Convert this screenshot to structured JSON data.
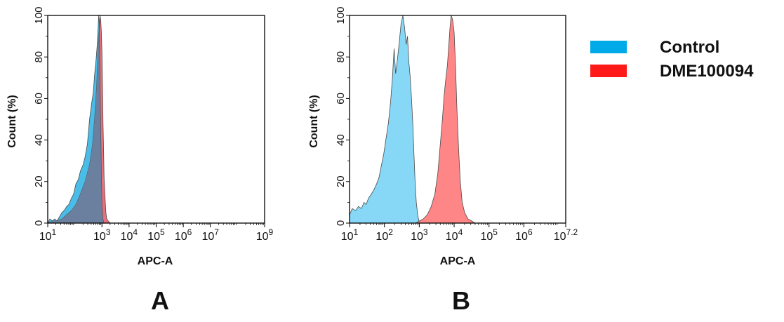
{
  "colors": {
    "control": "#00a9e8",
    "dme": "#ff1a1a",
    "control_fill_A": "#3fb8e6",
    "dme_fill_A": "#e8606a",
    "overlap_fill_A": "#6b7f9e",
    "control_fill_B": "#7fd6f5",
    "dme_fill_B": "#ff7f7f",
    "edge": "#4a4a4a"
  },
  "legend": {
    "items": [
      {
        "label": "Control",
        "color": "#00a9e8"
      },
      {
        "label": "DME100094",
        "color": "#ff1a1a"
      }
    ]
  },
  "chart_data": [
    {
      "panel": "A",
      "type": "area",
      "xlabel": "APC-A",
      "ylabel": "Count  (%)",
      "xscale": "log",
      "xlim": [
        10,
        1000000000
      ],
      "ylim": [
        0,
        100
      ],
      "yticks": [
        0,
        20,
        40,
        60,
        80,
        100
      ],
      "xticks": [
        {
          "base": "10",
          "exp": "1",
          "value": 10
        },
        {
          "base": "10",
          "exp": "3",
          "value": 1000
        },
        {
          "base": "10",
          "exp": "4",
          "value": 10000
        },
        {
          "base": "10",
          "exp": "5",
          "value": 100000
        },
        {
          "base": "10",
          "exp": "6",
          "value": 1000000
        },
        {
          "base": "10",
          "exp": "7",
          "value": 10000000
        },
        {
          "base": "10",
          "exp": "9",
          "value": 1000000000
        }
      ],
      "series": [
        {
          "name": "Control",
          "x": [
            10,
            12,
            15,
            18,
            22,
            27,
            33,
            40,
            50,
            60,
            75,
            90,
            110,
            135,
            160,
            200,
            240,
            290,
            350,
            420,
            480,
            540,
            600,
            660,
            720,
            760,
            800,
            850,
            900,
            950,
            1000,
            1080,
            1200
          ],
          "y": [
            0,
            2,
            1,
            2,
            1,
            3,
            5,
            6,
            8,
            9,
            12,
            14,
            19,
            21,
            25,
            28,
            32,
            38,
            50,
            58,
            63,
            72,
            78,
            85,
            93,
            100,
            96,
            70,
            45,
            25,
            10,
            2,
            0
          ]
        },
        {
          "name": "DME100094",
          "x": [
            10,
            15,
            22,
            33,
            50,
            75,
            110,
            160,
            240,
            350,
            450,
            550,
            650,
            720,
            780,
            850,
            900,
            950,
            1000,
            1050,
            1100,
            1150,
            1200,
            1300,
            1400,
            1500,
            1700,
            2000
          ],
          "y": [
            0,
            1,
            1,
            2,
            4,
            6,
            9,
            14,
            20,
            28,
            38,
            52,
            68,
            82,
            92,
            100,
            98,
            92,
            82,
            65,
            48,
            35,
            22,
            12,
            5,
            2,
            1,
            0
          ]
        }
      ]
    },
    {
      "panel": "B",
      "type": "area",
      "xlabel": "APC-A",
      "ylabel": "Count  (%)",
      "xscale": "log",
      "xlim": [
        10,
        15848931.9
      ],
      "ylim": [
        0,
        100
      ],
      "yticks": [
        0,
        20,
        40,
        60,
        80,
        100
      ],
      "xticks": [
        {
          "base": "10",
          "exp": "1",
          "value": 10
        },
        {
          "base": "10",
          "exp": "2",
          "value": 100
        },
        {
          "base": "10",
          "exp": "3",
          "value": 1000
        },
        {
          "base": "10",
          "exp": "4",
          "value": 10000
        },
        {
          "base": "10",
          "exp": "5",
          "value": 100000
        },
        {
          "base": "10",
          "exp": "6",
          "value": 1000000
        },
        {
          "base": "10",
          "exp": "7.2",
          "value": 15848931.9
        }
      ],
      "series": [
        {
          "name": "Control",
          "x": [
            10,
            12,
            15,
            18,
            22,
            26,
            30,
            35,
            42,
            50,
            60,
            70,
            80,
            95,
            110,
            130,
            150,
            170,
            190,
            210,
            240,
            270,
            300,
            340,
            380,
            420,
            460,
            500,
            550,
            600,
            650,
            700,
            760,
            820,
            900,
            1000
          ],
          "y": [
            4,
            7,
            6,
            8,
            7,
            10,
            9,
            12,
            14,
            16,
            19,
            22,
            27,
            33,
            40,
            48,
            58,
            70,
            84,
            72,
            80,
            88,
            96,
            100,
            94,
            86,
            90,
            78,
            70,
            60,
            48,
            34,
            20,
            10,
            4,
            0
          ]
        },
        {
          "name": "DME100094",
          "x": [
            800,
            1000,
            1300,
            1700,
            2200,
            2800,
            3400,
            4000,
            4600,
            5200,
            5800,
            6400,
            7000,
            7600,
            8200,
            9000,
            10000,
            11000,
            12000,
            13500,
            15000,
            17000,
            20000,
            25000,
            32000,
            40000
          ],
          "y": [
            0,
            1,
            2,
            4,
            8,
            14,
            24,
            38,
            50,
            62,
            70,
            76,
            85,
            94,
            100,
            98,
            92,
            75,
            55,
            35,
            20,
            10,
            5,
            2,
            1,
            0
          ]
        }
      ]
    }
  ],
  "panels": {
    "A": {
      "letter": "A"
    },
    "B": {
      "letter": "B"
    }
  }
}
